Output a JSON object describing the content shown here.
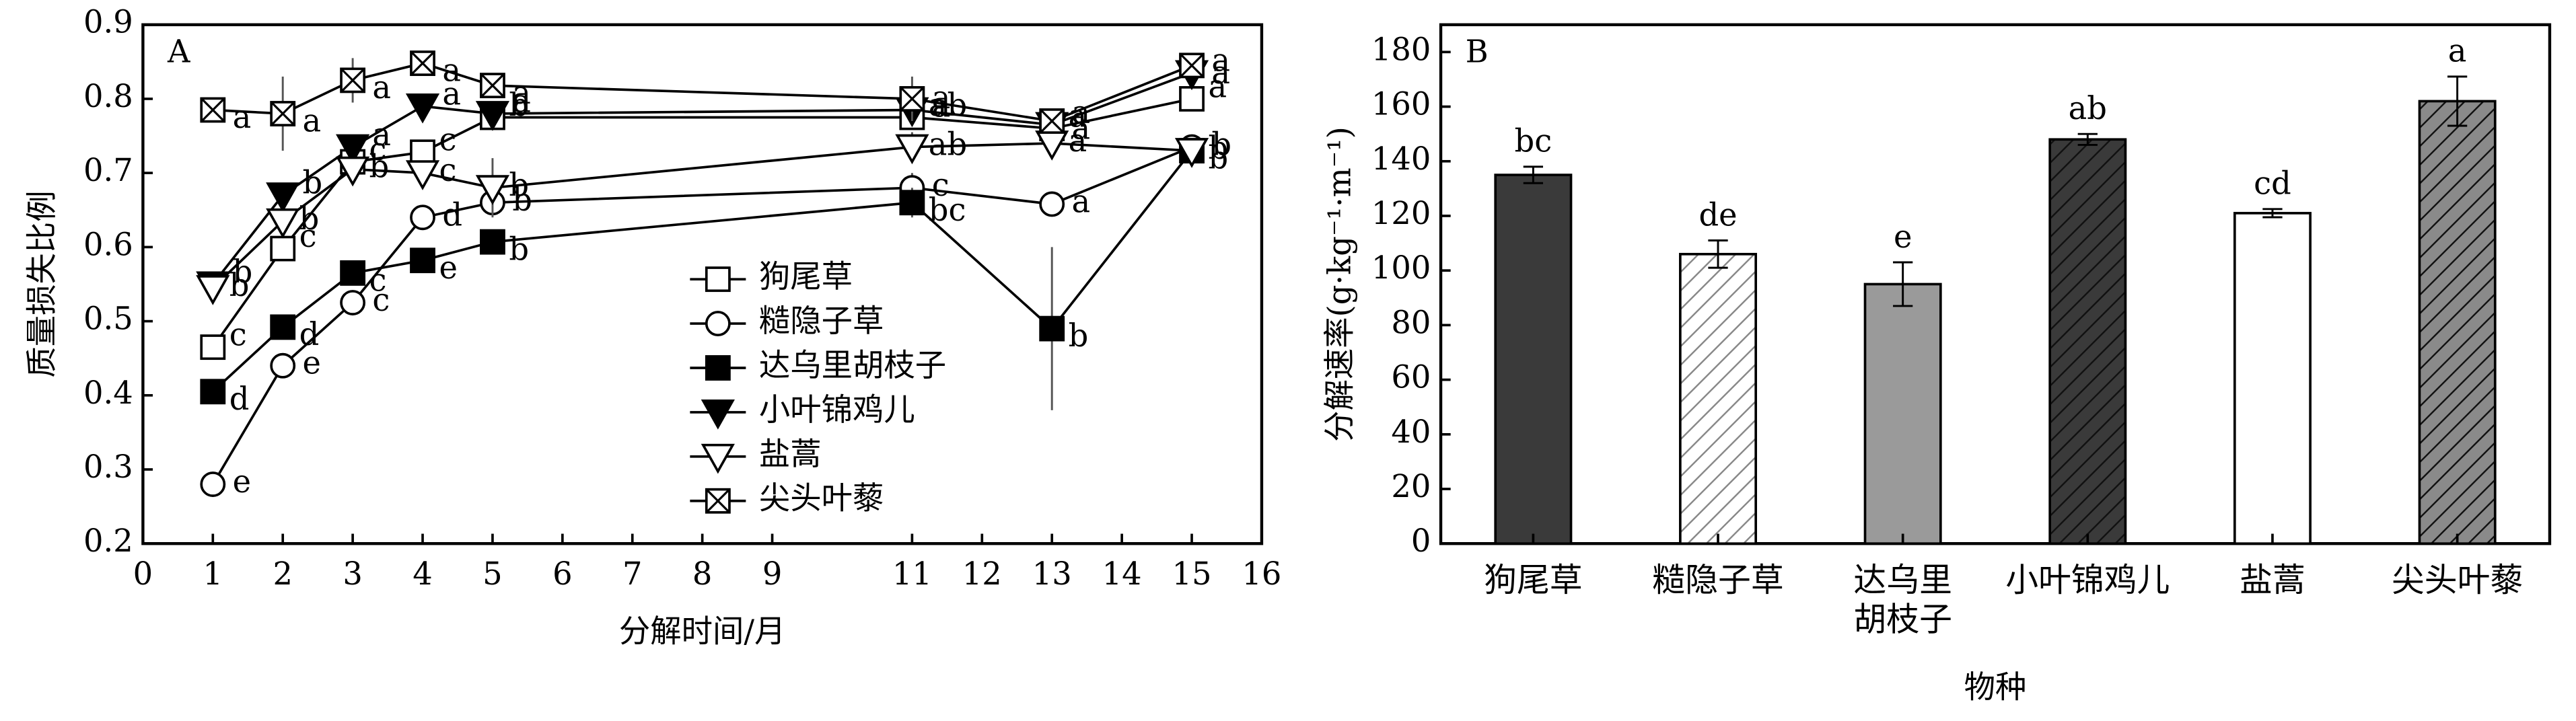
{
  "chart_data": [
    {
      "type": "line",
      "panel": "A",
      "xlabel": "分解时间/月",
      "ylabel": "质量损失比例",
      "x": [
        1,
        2,
        3,
        4,
        5,
        11,
        13,
        15
      ],
      "xlim": [
        0,
        16
      ],
      "xticks": [
        0,
        1,
        2,
        3,
        4,
        5,
        6,
        7,
        8,
        9,
        11,
        12,
        13,
        14,
        15,
        16
      ],
      "ylim": [
        0.2,
        0.9
      ],
      "yticks": [
        0.2,
        0.3,
        0.4,
        0.5,
        0.6,
        0.7,
        0.8,
        0.9
      ],
      "series": [
        {
          "name": "狗尾草",
          "marker": "square-open",
          "color": "#000000",
          "values": [
            0.465,
            0.598,
            0.715,
            0.728,
            0.775,
            0.775,
            0.76,
            0.8
          ],
          "errors": [
            0.01,
            0.01,
            0.01,
            0.01,
            0.01,
            0.01,
            0.01,
            0.01
          ],
          "letters": [
            "c",
            "c",
            "c",
            "c",
            "b",
            "ab",
            "a",
            "a"
          ]
        },
        {
          "name": "糙隐子草",
          "marker": "circle-open",
          "color": "#000000",
          "values": [
            0.28,
            0.44,
            0.525,
            0.64,
            0.66,
            0.68,
            0.658,
            0.735
          ],
          "errors": [
            0.01,
            0.01,
            0.01,
            0.01,
            0.01,
            0.02,
            0.01,
            0.01
          ],
          "letters": [
            "e",
            "e",
            "c",
            "d",
            "b",
            "c",
            "a",
            "b"
          ]
        },
        {
          "name": "达乌里胡枝子",
          "marker": "square-filled",
          "color": "#000000",
          "values": [
            0.405,
            0.492,
            0.565,
            0.582,
            0.607,
            0.66,
            0.49,
            0.73
          ],
          "errors": [
            0.01,
            0.01,
            0.01,
            0.01,
            0.01,
            0.02,
            0.11,
            0.01
          ],
          "letters": [
            "d",
            "d",
            "c",
            "e",
            "b",
            "bc",
            "b",
            "b"
          ]
        },
        {
          "name": "小叶锦鸡儿",
          "marker": "triangle-filled",
          "color": "#000000",
          "values": [
            0.55,
            0.67,
            0.735,
            0.79,
            0.78,
            0.785,
            0.765,
            0.835
          ],
          "errors": [
            0.01,
            0.01,
            0.01,
            0.01,
            0.01,
            0.01,
            0.01,
            0.01
          ],
          "letters": [
            "b",
            "b",
            "a",
            "a",
            "a",
            "a",
            "a",
            "a"
          ]
        },
        {
          "name": "盐蒿",
          "marker": "triangle-open",
          "color": "#000000",
          "values": [
            0.545,
            0.635,
            0.705,
            0.7,
            0.68,
            0.735,
            0.74,
            0.73
          ],
          "errors": [
            0.01,
            0.01,
            0.01,
            0.01,
            0.04,
            0.02,
            0.01,
            0.01
          ],
          "letters": [
            "b",
            "b",
            "b",
            "c",
            "b",
            "ab",
            "a",
            "b"
          ]
        },
        {
          "name": "尖头叶藜",
          "marker": "square-cross",
          "color": "#000000",
          "values": [
            0.785,
            0.78,
            0.825,
            0.848,
            0.818,
            0.8,
            0.77,
            0.845
          ],
          "errors": [
            0.01,
            0.05,
            0.03,
            0.01,
            0.01,
            0.03,
            0.01,
            0.01
          ],
          "letters": [
            "a",
            "a",
            "a",
            "a",
            "a",
            "a",
            "a",
            "a"
          ]
        }
      ]
    },
    {
      "type": "bar",
      "panel": "B",
      "xlabel": "物种",
      "ylabel": "分解速率(g·kg⁻¹·m⁻¹)",
      "categories": [
        "狗尾草",
        "糙隐子草",
        "达乌里胡枝子",
        "小叶锦鸡儿",
        "盐蒿",
        "尖头叶藜"
      ],
      "values": [
        135,
        106,
        95,
        148,
        121,
        162
      ],
      "errors": [
        3,
        5,
        8,
        2,
        1.5,
        9
      ],
      "letters": [
        "bc",
        "de",
        "e",
        "ab",
        "cd",
        "a"
      ],
      "colors": [
        "#3a3a3a",
        "#ffffff",
        "#9a9a9a",
        "#3a3a3a",
        "#ffffff",
        "#8a8a8a"
      ],
      "hatch": [
        false,
        true,
        false,
        true,
        false,
        true
      ],
      "ylim": [
        0,
        190
      ],
      "yticks": [
        0,
        20,
        40,
        60,
        80,
        100,
        120,
        140,
        160,
        180
      ]
    }
  ]
}
